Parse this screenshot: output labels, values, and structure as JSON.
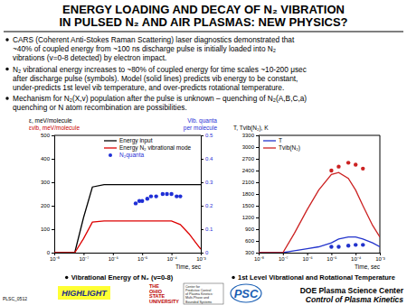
{
  "title": [
    "ENERGY LOADING AND DECAY OF N₂ VIBRATION",
    "IN PULSED N₂ AND AIR PLASMAS: NEW PHYSICS?"
  ],
  "bullets": [
    [
      "CARS (Coherent Anti-Stokes Raman Scattering) laser diagnostics demonstrated that",
      "~40% of coupled energy from ~100 ns discharge pulse is initially loaded into N₂",
      "vibrations (v=0-8 detected) by electron impact."
    ],
    [
      "N₂ vibrational energy increases to ~80% of coupled energy for time scales ~10-200 μsec",
      "after discharge pulse (symbols).  Model (solid lines) predicts vib energy to be constant,",
      "under-predicts 1st level vib temperature, and over-predicts rotational temperature."
    ],
    [
      "Mechanism for N₂(X,v) population after the pulse is unknown – quenching of N₂(A,B,C,a)",
      "quenching or N atom recombination are possibilities."
    ]
  ],
  "chart_data": [
    {
      "type": "line",
      "title": "Vibrational Energy of N₂ (v=0-8)",
      "ylabel": [
        "ε, meV/molecule",
        "εvib, meV/molecule"
      ],
      "y2label": [
        "Vib. quanta",
        "per molecule"
      ],
      "xlabel": "Time, sec",
      "log": "x",
      "legend": "top",
      "xlim": [
        1e-08,
        0.001
      ],
      "xticks": [
        {
          "value": 1e-08,
          "label": "10⁻⁸"
        },
        {
          "value": 1e-07,
          "label": "10⁻⁷"
        },
        {
          "value": 1e-06,
          "label": "10⁻⁶"
        },
        {
          "value": 1e-05,
          "label": "10⁻⁵"
        },
        {
          "value": 0.0001,
          "label": "10⁻⁴"
        },
        {
          "value": 0.001,
          "label": "10⁻³"
        }
      ],
      "ylim": [
        0,
        500
      ],
      "yticks": [
        0,
        100,
        200,
        300,
        400,
        500
      ],
      "y2lim": [
        0,
        0.5
      ],
      "y2ticks": [
        0,
        0.1,
        0.2,
        0.3,
        0.4,
        0.5
      ],
      "series": [
        {
          "name": "Energy input",
          "color": "#000000",
          "type": "line",
          "x": [
            1e-08,
            5e-08,
            1e-07,
            2e-07,
            5e-07,
            1e-06,
            1e-05,
            0.0001,
            0.0002,
            0.0004,
            0.0007,
            0.001
          ],
          "values": [
            0,
            0,
            150,
            280,
            290,
            290,
            290,
            290,
            290,
            290,
            290,
            290
          ]
        },
        {
          "name": "Energy N₂ vibrational mode",
          "color": "#dd0000",
          "type": "line",
          "x": [
            1e-08,
            5e-08,
            1e-07,
            2e-07,
            5e-07,
            1e-06,
            1e-05,
            0.0001,
            0.0002,
            0.0004,
            0.0007,
            0.001
          ],
          "values": [
            0,
            0,
            60,
            130,
            135,
            135,
            135,
            135,
            120,
            80,
            40,
            15
          ]
        },
        {
          "name": "N₂quanta",
          "color": "#1f2fd6",
          "type": "scatter",
          "marker": "circle",
          "axis": "y2",
          "x": [
            6e-06,
            8e-06,
            1e-05,
            1.5e-05,
            2e-05,
            3e-05,
            5e-05,
            7e-05,
            0.0001,
            0.00015,
            0.0002
          ],
          "values": [
            0.21,
            0.22,
            0.22,
            0.23,
            0.24,
            0.24,
            0.25,
            0.25,
            0.25,
            0.24,
            0.24
          ]
        }
      ]
    },
    {
      "type": "line",
      "title": "1st Level Vibrational and Rotational Temperature",
      "ylabel": [
        "T, Tvib(N₂), K"
      ],
      "xlabel": "Time, sec",
      "log": "x",
      "legend": "top-left",
      "xlim": [
        1e-08,
        0.001
      ],
      "xticks": [
        {
          "value": 1e-08,
          "label": "10⁻⁸"
        },
        {
          "value": 1e-07,
          "label": "10⁻⁷"
        },
        {
          "value": 1e-06,
          "label": "10⁻⁶"
        },
        {
          "value": 1e-05,
          "label": "10⁻⁵"
        },
        {
          "value": 0.0001,
          "label": "10⁻⁴"
        },
        {
          "value": 0.001,
          "label": "10⁻³"
        }
      ],
      "ylim": [
        300,
        3300
      ],
      "yticks": [
        300,
        600,
        900,
        1200,
        1500,
        1800,
        2100,
        2400,
        2700,
        3000,
        3300
      ],
      "series": [
        {
          "name": "T",
          "color": "#2233cc",
          "type": "line",
          "x": [
            1e-08,
            1e-07,
            3e-07,
            1e-06,
            3e-06,
            1e-05,
            2e-05,
            5e-05,
            0.0001,
            0.0002,
            0.0005,
            0.001
          ],
          "values": [
            300,
            300,
            350,
            400,
            450,
            550,
            650,
            700,
            700,
            650,
            550,
            450
          ]
        },
        {
          "name": "Tvib(N₂)",
          "color": "#cc2222",
          "type": "line",
          "x": [
            1e-08,
            1e-07,
            3e-07,
            1e-06,
            3e-06,
            1e-05,
            2e-05,
            5e-05,
            0.0001,
            0.0002,
            0.0005,
            0.001
          ],
          "values": [
            300,
            300,
            800,
            1400,
            1900,
            2300,
            2350,
            2200,
            1900,
            1500,
            1000,
            700
          ]
        },
        {
          "color": "#cc2222",
          "type": "scatter",
          "marker": "circle",
          "x": [
            1e-05,
            2e-05,
            5e-05,
            0.0001,
            0.0002
          ],
          "values": [
            2400,
            2500,
            2600,
            2550,
            2450
          ]
        },
        {
          "color": "#2233cc",
          "type": "scatter",
          "marker": "circle",
          "x": [
            1e-05,
            2e-05,
            5e-05,
            0.0001,
            0.0002
          ],
          "values": [
            450,
            450,
            480,
            500,
            500
          ]
        }
      ]
    }
  ],
  "footer": {
    "code": "PLSC_0512",
    "highlight": "HIGHLIGHT",
    "university": [
      "THE",
      "OHIO",
      "STATE",
      "UNIVERSITY"
    ],
    "center_logo": [
      "Center for",
      "Predictive Control",
      "of Plasma Kinetics:",
      "Multi-Phase and",
      "Bounded Systems"
    ],
    "psc": "PSC",
    "center_name": "DOE Plasma Science Center",
    "center_subtitle": "Control of Plasma Kinetics"
  }
}
